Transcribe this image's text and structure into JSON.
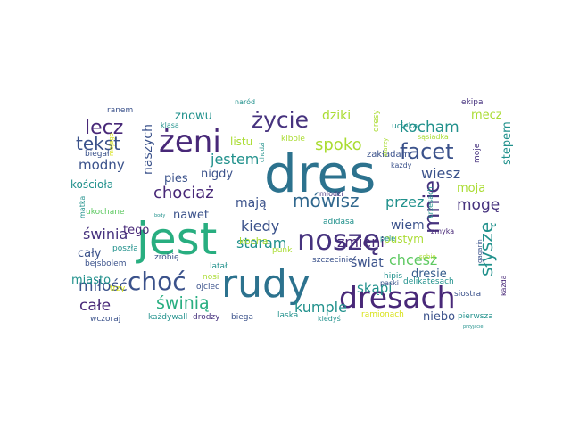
{
  "palette": {
    "deep_purple": "#46327e",
    "indigo": "#3b528b",
    "slate_blue": "#365c8d",
    "steel_blue": "#31688e",
    "teal_blue": "#2c728e",
    "teal": "#21918c",
    "sea_green": "#28ae80",
    "green": "#5ec962",
    "lime": "#aadc32",
    "yellow": "#d8e219",
    "dark_purple": "#482878"
  },
  "words": [
    {
      "text": "dres",
      "color": "teal_blue"
    },
    {
      "text": "jest",
      "color": "sea_green"
    },
    {
      "text": "rudy",
      "color": "teal_blue"
    },
    {
      "text": "dresach",
      "color": "dark_purple"
    },
    {
      "text": "żeni",
      "color": "dark_purple"
    },
    {
      "text": "noszę",
      "color": "deep_purple"
    },
    {
      "text": "choć",
      "color": "indigo"
    },
    {
      "text": "życie",
      "color": "deep_purple"
    },
    {
      "text": "facet",
      "color": "indigo"
    },
    {
      "text": "mnie",
      "color": "deep_purple"
    },
    {
      "text": "lecz",
      "color": "dark_purple"
    },
    {
      "text": "tekst",
      "color": "indigo"
    },
    {
      "text": "mówisz",
      "color": "steel_blue"
    },
    {
      "text": "słyszę",
      "color": "teal"
    },
    {
      "text": "kocham",
      "color": "teal"
    },
    {
      "text": "świnia",
      "color": "deep_purple"
    },
    {
      "text": "świnią",
      "color": "sea_green"
    },
    {
      "text": "spoko",
      "color": "lime"
    },
    {
      "text": "chociaż",
      "color": "dark_purple"
    },
    {
      "text": "zmieni",
      "color": "dark_purple"
    },
    {
      "text": "chcesz",
      "color": "green"
    },
    {
      "text": "mogę",
      "color": "deep_purple"
    },
    {
      "text": "miłość",
      "color": "indigo"
    },
    {
      "text": "całe",
      "color": "dark_purple"
    },
    {
      "text": "kumple",
      "color": "teal"
    },
    {
      "text": "skąpi",
      "color": "teal"
    },
    {
      "text": "naszych",
      "color": "indigo"
    },
    {
      "text": "jestem",
      "color": "teal"
    },
    {
      "text": "staram",
      "color": "teal"
    },
    {
      "text": "przez",
      "color": "teal"
    },
    {
      "text": "wiesz",
      "color": "indigo"
    },
    {
      "text": "modny",
      "color": "indigo"
    },
    {
      "text": "kiedy",
      "color": "indigo"
    },
    {
      "text": "mecz",
      "color": "lime"
    },
    {
      "text": "dziki",
      "color": "lime"
    },
    {
      "text": "moja",
      "color": "lime"
    },
    {
      "text": "mają",
      "color": "indigo"
    },
    {
      "text": "świat",
      "color": "indigo"
    },
    {
      "text": "wiem",
      "color": "indigo"
    },
    {
      "text": "nigdy",
      "color": "indigo"
    },
    {
      "text": "pies",
      "color": "indigo"
    },
    {
      "text": "nawet",
      "color": "indigo"
    },
    {
      "text": "tego",
      "color": "dark_purple"
    },
    {
      "text": "cały",
      "color": "indigo"
    },
    {
      "text": "miasto",
      "color": "teal"
    },
    {
      "text": "dresie",
      "color": "slate_blue"
    },
    {
      "text": "niebo",
      "color": "indigo"
    },
    {
      "text": "stepem",
      "color": "teal"
    },
    {
      "text": "listu",
      "color": "lime"
    },
    {
      "text": "znowu",
      "color": "teal"
    },
    {
      "text": "kościoła",
      "color": "teal"
    },
    {
      "text": "kocha",
      "color": "lime"
    },
    {
      "text": "pustym",
      "color": "lime"
    },
    {
      "text": "zakładam",
      "color": "indigo"
    },
    {
      "text": "adidasa",
      "color": "teal"
    },
    {
      "text": "pele",
      "color": "teal"
    },
    {
      "text": "delikatesach",
      "color": "teal"
    },
    {
      "text": "ramionach",
      "color": "yellow"
    },
    {
      "text": "pierwsza",
      "color": "teal"
    },
    {
      "text": "laska",
      "color": "teal"
    },
    {
      "text": "każdywall",
      "color": "teal"
    },
    {
      "text": "drodzy",
      "color": "deep_purple"
    },
    {
      "text": "biega",
      "color": "indigo"
    },
    {
      "text": "kiedyś",
      "color": "teal"
    },
    {
      "text": "wczoraj",
      "color": "indigo"
    },
    {
      "text": "bejsbolem",
      "color": "indigo"
    },
    {
      "text": "ranem",
      "color": "indigo"
    },
    {
      "text": "klasa",
      "color": "teal"
    },
    {
      "text": "naród",
      "color": "teal"
    },
    {
      "text": "dresy",
      "color": "lime"
    },
    {
      "text": "ucieka",
      "color": "teal"
    },
    {
      "text": "kibole",
      "color": "lime"
    },
    {
      "text": "ekipa",
      "color": "deep_purple"
    },
    {
      "text": "sąsiadka",
      "color": "lime"
    },
    {
      "text": "biegał",
      "color": "indigo"
    },
    {
      "text": "mojego",
      "color": "yellow"
    },
    {
      "text": "chodzi",
      "color": "teal"
    },
    {
      "text": "każdy",
      "color": "indigo"
    },
    {
      "text": "moje",
      "color": "deep_purple"
    },
    {
      "text": "starzy",
      "color": "lime"
    },
    {
      "text": "młodzi",
      "color": "deep_purple"
    },
    {
      "text": "matka",
      "color": "teal"
    },
    {
      "text": "ukochane",
      "color": "green"
    },
    {
      "text": "body",
      "color": "teal"
    },
    {
      "text": "poszła",
      "color": "teal"
    },
    {
      "text": "zrobię",
      "color": "indigo"
    },
    {
      "text": "punk",
      "color": "lime"
    },
    {
      "text": "szczecinie",
      "color": "indigo"
    },
    {
      "text": "latał",
      "color": "teal"
    },
    {
      "text": "nosi",
      "color": "lime"
    },
    {
      "text": "ojciec",
      "color": "indigo"
    },
    {
      "text": "trzy",
      "color": "yellow"
    },
    {
      "text": "hipis",
      "color": "teal"
    },
    {
      "text": "zmyka",
      "color": "dark_purple"
    },
    {
      "text": "paski",
      "color": "indigo"
    },
    {
      "text": "siostra",
      "color": "indigo"
    },
    {
      "text": "gagarin",
      "color": "indigo"
    },
    {
      "text": "każda",
      "color": "dark_purple"
    },
    {
      "text": "krzesach",
      "color": "teal"
    },
    {
      "text": "przyjaciel",
      "color": "teal"
    },
    {
      "text": "sobie",
      "color": "lime"
    }
  ]
}
